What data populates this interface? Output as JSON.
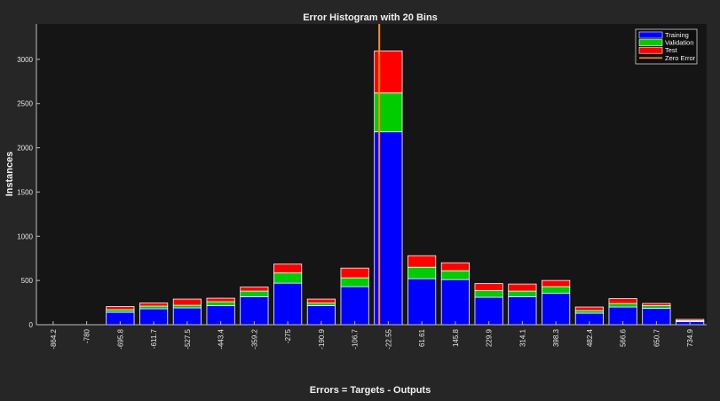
{
  "chart_data": {
    "type": "bar",
    "title": "Error Histogram with 20 Bins",
    "xlabel": "Errors = Targets - Outputs",
    "ylabel": "Instances",
    "stacked": true,
    "categories": [
      "-864.2",
      "-780",
      "-695.8",
      "-611.7",
      "-527.5",
      "-443.4",
      "-359.2",
      "-275",
      "-190.9",
      "-106.7",
      "-22.55",
      "61.61",
      "145.8",
      "229.9",
      "314.1",
      "398.3",
      "482.4",
      "566.6",
      "650.7",
      "734.9"
    ],
    "series": [
      {
        "name": "Training",
        "color": "#0000ff",
        "values": [
          0,
          0,
          140,
          180,
          190,
          215,
          315,
          470,
          215,
          430,
          2180,
          520,
          510,
          310,
          315,
          355,
          130,
          200,
          185,
          35
        ]
      },
      {
        "name": "Validation",
        "color": "#00cc00",
        "values": [
          0,
          0,
          30,
          30,
          30,
          45,
          65,
          115,
          30,
          100,
          440,
          130,
          100,
          75,
          65,
          75,
          30,
          40,
          30,
          10
        ]
      },
      {
        "name": "Test",
        "color": "#ff0000",
        "values": [
          0,
          0,
          35,
          35,
          70,
          40,
          45,
          100,
          45,
          110,
          475,
          130,
          90,
          80,
          80,
          70,
          40,
          55,
          25,
          15
        ]
      }
    ],
    "zero_error": {
      "name": "Zero Error",
      "color": "#ff8c1a",
      "x_category_position": -0.27
    },
    "yticks": [
      0,
      500,
      1000,
      1500,
      2000,
      2500,
      3000
    ],
    "ylim": [
      0,
      3400
    ],
    "legend_position": "top-right",
    "grid": false,
    "colors": {
      "figure_background": "#262626",
      "axes_background": "#151515",
      "axis_color": "#bdbdbd",
      "bar_edge": "#ffffff"
    }
  }
}
